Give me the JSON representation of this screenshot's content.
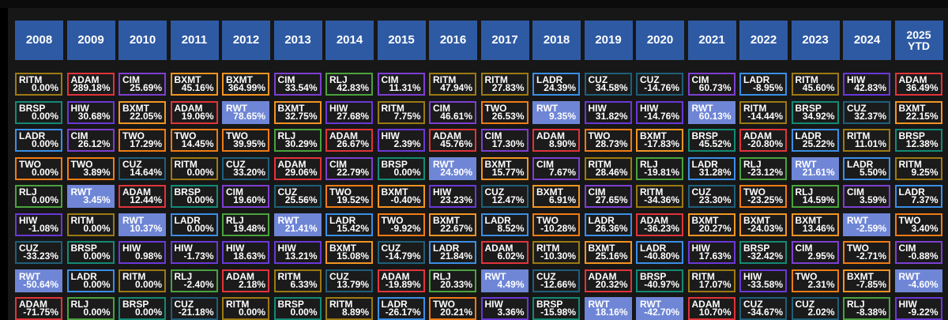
{
  "chart_data": {
    "type": "table",
    "years": [
      "2008",
      "2009",
      "2010",
      "2011",
      "2012",
      "2013",
      "2014",
      "2015",
      "2016",
      "2017",
      "2018",
      "2019",
      "2020",
      "2021",
      "2022",
      "2023",
      "2024",
      "2025 YTD"
    ],
    "ticker_colors": {
      "RITM": "#9c7a12",
      "ADAM": "#e0343a",
      "CIM": "#7d3fd0",
      "BXMT": "#f39422",
      "RLJ": "#4aa33d",
      "LADR": "#3a8ee6",
      "BRSP": "#138a75",
      "HIW": "#6a38d6",
      "TWO": "#f07b15",
      "CUZ": "#1f5f7a",
      "RWT": "#6f86d6"
    },
    "rows": [
      [
        [
          "RITM",
          "0.00%"
        ],
        [
          "ADAM",
          "289.18%"
        ],
        [
          "CIM",
          "25.69%"
        ],
        [
          "BXMT",
          "45.16%"
        ],
        [
          "BXMT",
          "364.99%"
        ],
        [
          "CIM",
          "33.54%"
        ],
        [
          "RLJ",
          "42.83%"
        ],
        [
          "CIM",
          "11.31%"
        ],
        [
          "RITM",
          "47.94%"
        ],
        [
          "RITM",
          "27.83%"
        ],
        [
          "LADR",
          "24.39%"
        ],
        [
          "CUZ",
          "34.58%"
        ],
        [
          "CUZ",
          "-14.76%"
        ],
        [
          "CIM",
          "60.73%"
        ],
        [
          "LADR",
          "-8.95%"
        ],
        [
          "RITM",
          "45.60%"
        ],
        [
          "HIW",
          "42.83%"
        ],
        [
          "ADAM",
          "36.49%"
        ]
      ],
      [
        [
          "BRSP",
          "0.00%"
        ],
        [
          "HIW",
          "30.68%"
        ],
        [
          "BXMT",
          "22.05%"
        ],
        [
          "ADAM",
          "19.06%"
        ],
        [
          "RWT",
          "78.65%"
        ],
        [
          "BXMT",
          "32.75%"
        ],
        [
          "HIW",
          "27.68%"
        ],
        [
          "RITM",
          "7.75%"
        ],
        [
          "CIM",
          "46.61%"
        ],
        [
          "TWO",
          "26.53%"
        ],
        [
          "RWT",
          "9.35%"
        ],
        [
          "HIW",
          "31.82%"
        ],
        [
          "HIW",
          "-14.76%"
        ],
        [
          "RWT",
          "60.13%"
        ],
        [
          "RITM",
          "-14.44%"
        ],
        [
          "BRSP",
          "34.92%"
        ],
        [
          "CUZ",
          "32.37%"
        ],
        [
          "BXMT",
          "22.15%"
        ]
      ],
      [
        [
          "LADR",
          "0.00%"
        ],
        [
          "CIM",
          "26.12%"
        ],
        [
          "TWO",
          "17.29%"
        ],
        [
          "TWO",
          "14.45%"
        ],
        [
          "TWO",
          "39.95%"
        ],
        [
          "RLJ",
          "30.29%"
        ],
        [
          "ADAM",
          "26.67%"
        ],
        [
          "HIW",
          "2.39%"
        ],
        [
          "ADAM",
          "45.76%"
        ],
        [
          "CIM",
          "17.30%"
        ],
        [
          "ADAM",
          "8.90%"
        ],
        [
          "TWO",
          "28.73%"
        ],
        [
          "BXMT",
          "-17.83%"
        ],
        [
          "BRSP",
          "45.52%"
        ],
        [
          "ADAM",
          "-20.80%"
        ],
        [
          "LADR",
          "25.22%"
        ],
        [
          "RITM",
          "11.01%"
        ],
        [
          "BRSP",
          "12.38%"
        ]
      ],
      [
        [
          "TWO",
          "0.00%"
        ],
        [
          "TWO",
          "3.89%"
        ],
        [
          "CUZ",
          "14.64%"
        ],
        [
          "RITM",
          "0.00%"
        ],
        [
          "CUZ",
          "33.20%"
        ],
        [
          "ADAM",
          "29.06%"
        ],
        [
          "CIM",
          "22.79%"
        ],
        [
          "BRSP",
          "0.00%"
        ],
        [
          "RWT",
          "24.90%"
        ],
        [
          "BXMT",
          "15.77%"
        ],
        [
          "CIM",
          "7.67%"
        ],
        [
          "RITM",
          "28.46%"
        ],
        [
          "RLJ",
          "-19.81%"
        ],
        [
          "LADR",
          "31.28%"
        ],
        [
          "RLJ",
          "-23.12%"
        ],
        [
          "RWT",
          "21.61%"
        ],
        [
          "LADR",
          "5.50%"
        ],
        [
          "RITM",
          "9.25%"
        ]
      ],
      [
        [
          "RLJ",
          "0.00%"
        ],
        [
          "RWT",
          "3.45%"
        ],
        [
          "ADAM",
          "12.44%"
        ],
        [
          "BRSP",
          "0.00%"
        ],
        [
          "CIM",
          "19.60%"
        ],
        [
          "CUZ",
          "25.56%"
        ],
        [
          "TWO",
          "19.52%"
        ],
        [
          "BXMT",
          "-0.40%"
        ],
        [
          "HIW",
          "23.23%"
        ],
        [
          "CUZ",
          "12.47%"
        ],
        [
          "BXMT",
          "6.91%"
        ],
        [
          "CIM",
          "27.65%"
        ],
        [
          "RITM",
          "-34.36%"
        ],
        [
          "CUZ",
          "23.30%"
        ],
        [
          "TWO",
          "-23.25%"
        ],
        [
          "RLJ",
          "14.59%"
        ],
        [
          "CIM",
          "3.59%"
        ],
        [
          "LADR",
          "7.37%"
        ]
      ],
      [
        [
          "HIW",
          "-1.08%"
        ],
        [
          "RITM",
          "0.00%"
        ],
        [
          "RWT",
          "10.37%"
        ],
        [
          "LADR",
          "0.00%"
        ],
        [
          "RLJ",
          "19.48%"
        ],
        [
          "RWT",
          "21.41%"
        ],
        [
          "LADR",
          "15.42%"
        ],
        [
          "TWO",
          "-9.92%"
        ],
        [
          "BXMT",
          "22.67%"
        ],
        [
          "LADR",
          "8.52%"
        ],
        [
          "TWO",
          "-10.28%"
        ],
        [
          "LADR",
          "26.36%"
        ],
        [
          "ADAM",
          "-36.23%"
        ],
        [
          "BXMT",
          "20.27%"
        ],
        [
          "BXMT",
          "-24.03%"
        ],
        [
          "BXMT",
          "13.46%"
        ],
        [
          "RWT",
          "-2.59%"
        ],
        [
          "TWO",
          "3.40%"
        ]
      ],
      [
        [
          "CUZ",
          "-33.23%"
        ],
        [
          "BRSP",
          "0.00%"
        ],
        [
          "HIW",
          "0.98%"
        ],
        [
          "HIW",
          "-1.73%"
        ],
        [
          "HIW",
          "18.63%"
        ],
        [
          "HIW",
          "13.21%"
        ],
        [
          "BXMT",
          "15.08%"
        ],
        [
          "CUZ",
          "-14.79%"
        ],
        [
          "LADR",
          "21.84%"
        ],
        [
          "ADAM",
          "6.02%"
        ],
        [
          "RITM",
          "-10.30%"
        ],
        [
          "BXMT",
          "25.16%"
        ],
        [
          "LADR",
          "-40.80%"
        ],
        [
          "HIW",
          "17.63%"
        ],
        [
          "BRSP",
          "-32.42%"
        ],
        [
          "CIM",
          "2.95%"
        ],
        [
          "TWO",
          "-2.71%"
        ],
        [
          "CIM",
          "-0.88%"
        ]
      ],
      [
        [
          "RWT",
          "-50.64%"
        ],
        [
          "LADR",
          "0.00%"
        ],
        [
          "RITM",
          "0.00%"
        ],
        [
          "RLJ",
          "-2.40%"
        ],
        [
          "ADAM",
          "2.18%"
        ],
        [
          "RITM",
          "6.33%"
        ],
        [
          "CUZ",
          "13.79%"
        ],
        [
          "ADAM",
          "-19.89%"
        ],
        [
          "RLJ",
          "20.33%"
        ],
        [
          "RWT",
          "4.49%"
        ],
        [
          "CUZ",
          "-12.66%"
        ],
        [
          "ADAM",
          "20.32%"
        ],
        [
          "BRSP",
          "-40.97%"
        ],
        [
          "RITM",
          "17.07%"
        ],
        [
          "HIW",
          "-33.58%"
        ],
        [
          "TWO",
          "2.31%"
        ],
        [
          "BXMT",
          "-7.85%"
        ],
        [
          "RWT",
          "-4.60%"
        ]
      ],
      [
        [
          "ADAM",
          "-71.75%"
        ],
        [
          "RLJ",
          "0.00%"
        ],
        [
          "BRSP",
          "0.00%"
        ],
        [
          "CUZ",
          "-21.18%"
        ],
        [
          "RITM",
          "0.00%"
        ],
        [
          "BRSP",
          "0.00%"
        ],
        [
          "RITM",
          "8.89%"
        ],
        [
          "LADR",
          "-26.17%"
        ],
        [
          "TWO",
          "20.21%"
        ],
        [
          "HIW",
          "3.36%"
        ],
        [
          "BRSP",
          "-15.98%"
        ],
        [
          "RWT",
          "18.16%"
        ],
        [
          "RWT",
          "-42.70%"
        ],
        [
          "ADAM",
          "10.70%"
        ],
        [
          "CUZ",
          "-34.67%"
        ],
        [
          "CUZ",
          "2.02%"
        ],
        [
          "RLJ",
          "-8.38%"
        ],
        [
          "HIW",
          "-9.22%"
        ]
      ]
    ]
  }
}
